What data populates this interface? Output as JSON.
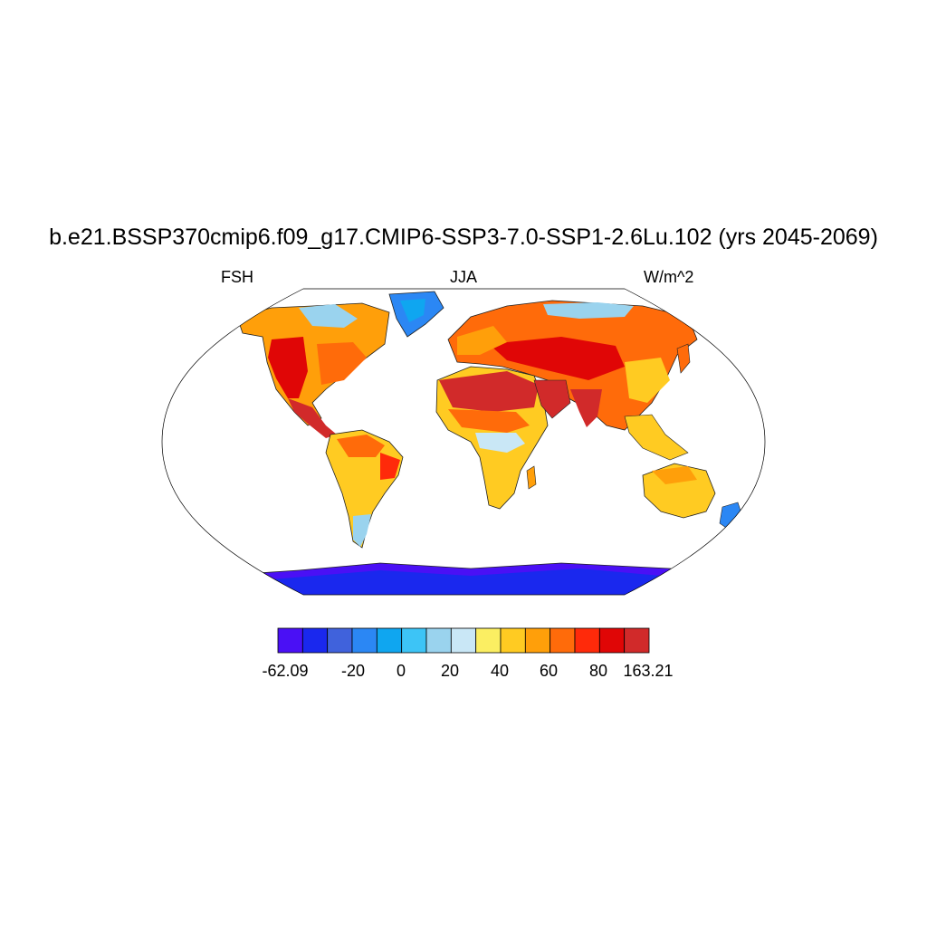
{
  "title": "b.e21.BSSP370cmip6.f09_g17.CMIP6-SSP3-7.0-SSP1-2.6Lu.102 (yrs 2045-2069)",
  "left_label": "FSH",
  "center_label": "JJA",
  "right_label": "W/m^2",
  "colorbar": {
    "colors": [
      "#4a10f5",
      "#1a28ee",
      "#4062dc",
      "#2b87f4",
      "#0fa6f0",
      "#3dc4f6",
      "#9ad3ee",
      "#c9e7f6",
      "#fbee62",
      "#ffcb22",
      "#ff9f0a",
      "#ff6b0a",
      "#ff2a0a",
      "#e00606",
      "#d12a2a"
    ],
    "labels": [
      "-62.09",
      "-20",
      "0",
      "20",
      "40",
      "60",
      "80",
      "163.21"
    ]
  }
}
